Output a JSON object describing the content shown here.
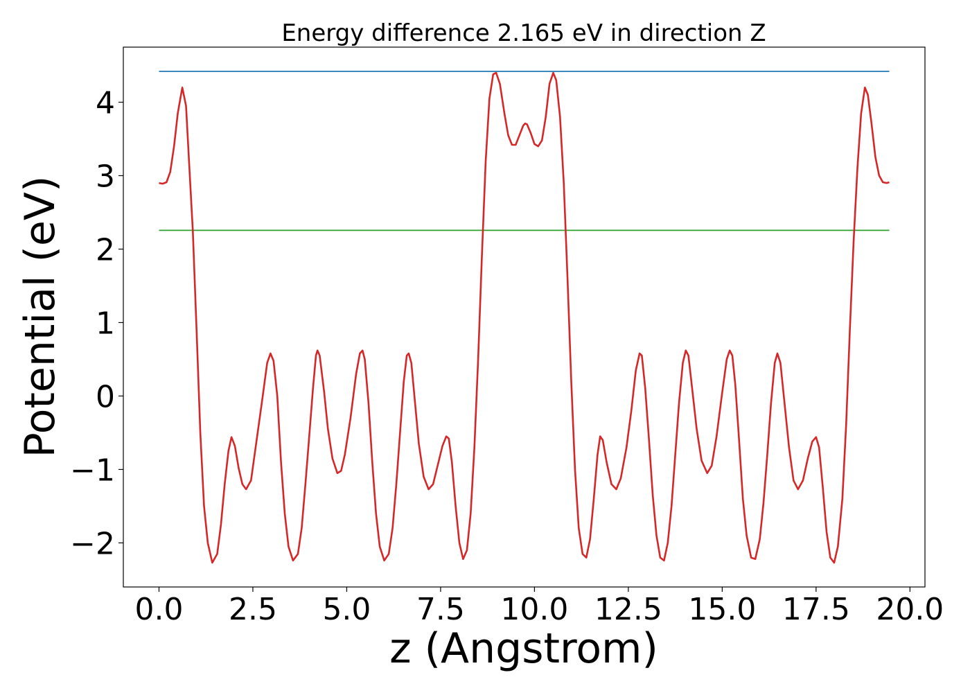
{
  "chart_data": {
    "type": "line",
    "title": "Energy difference 2.165 eV in direction Z",
    "xlabel": "z (Angstrom)",
    "ylabel": "Potential (eV)",
    "xlim": [
      -0.95,
      20.4
    ],
    "ylim": [
      -2.6,
      4.75
    ],
    "xticks": [
      0.0,
      2.5,
      5.0,
      7.5,
      10.0,
      12.5,
      15.0,
      17.5,
      20.0
    ],
    "xtick_labels": [
      "0.0",
      "2.5",
      "5.0",
      "7.5",
      "10.0",
      "12.5",
      "15.0",
      "17.5",
      "20.0"
    ],
    "yticks": [
      -2,
      -1,
      0,
      1,
      2,
      3,
      4
    ],
    "ytick_labels": [
      "−2",
      "−1",
      "0",
      "1",
      "2",
      "3",
      "4"
    ],
    "grid": false,
    "series": [
      {
        "color": "#d62728",
        "points": [
          [
            0.0,
            2.9
          ],
          [
            0.1,
            2.89
          ],
          [
            0.2,
            2.91
          ],
          [
            0.3,
            3.05
          ],
          [
            0.4,
            3.4
          ],
          [
            0.5,
            3.85
          ],
          [
            0.62,
            4.2
          ],
          [
            0.72,
            3.95
          ],
          [
            0.8,
            3.2
          ],
          [
            0.9,
            2.25
          ],
          [
            1.0,
            0.9
          ],
          [
            1.1,
            -0.5
          ],
          [
            1.2,
            -1.5
          ],
          [
            1.3,
            -2.0
          ],
          [
            1.42,
            -2.27
          ],
          [
            1.55,
            -2.15
          ],
          [
            1.65,
            -1.75
          ],
          [
            1.75,
            -1.2
          ],
          [
            1.85,
            -0.75
          ],
          [
            1.93,
            -0.56
          ],
          [
            2.02,
            -0.68
          ],
          [
            2.12,
            -0.98
          ],
          [
            2.22,
            -1.2
          ],
          [
            2.32,
            -1.27
          ],
          [
            2.45,
            -1.15
          ],
          [
            2.6,
            -0.6
          ],
          [
            2.75,
            -0.05
          ],
          [
            2.88,
            0.45
          ],
          [
            2.97,
            0.58
          ],
          [
            3.05,
            0.48
          ],
          [
            3.15,
            0.0
          ],
          [
            3.25,
            -0.9
          ],
          [
            3.35,
            -1.6
          ],
          [
            3.45,
            -2.05
          ],
          [
            3.57,
            -2.24
          ],
          [
            3.7,
            -2.15
          ],
          [
            3.8,
            -1.8
          ],
          [
            3.9,
            -1.2
          ],
          [
            4.0,
            -0.55
          ],
          [
            4.1,
            0.1
          ],
          [
            4.18,
            0.55
          ],
          [
            4.22,
            0.62
          ],
          [
            4.28,
            0.55
          ],
          [
            4.4,
            0.05
          ],
          [
            4.5,
            -0.45
          ],
          [
            4.62,
            -0.85
          ],
          [
            4.75,
            -1.05
          ],
          [
            4.85,
            -1.02
          ],
          [
            4.95,
            -0.8
          ],
          [
            5.1,
            -0.3
          ],
          [
            5.25,
            0.3
          ],
          [
            5.35,
            0.58
          ],
          [
            5.42,
            0.62
          ],
          [
            5.48,
            0.5
          ],
          [
            5.58,
            -0.1
          ],
          [
            5.68,
            -0.9
          ],
          [
            5.78,
            -1.6
          ],
          [
            5.88,
            -2.05
          ],
          [
            6.0,
            -2.24
          ],
          [
            6.12,
            -2.15
          ],
          [
            6.22,
            -1.8
          ],
          [
            6.32,
            -1.2
          ],
          [
            6.42,
            -0.5
          ],
          [
            6.52,
            0.2
          ],
          [
            6.6,
            0.55
          ],
          [
            6.65,
            0.58
          ],
          [
            6.72,
            0.45
          ],
          [
            6.82,
            -0.1
          ],
          [
            6.92,
            -0.65
          ],
          [
            7.05,
            -1.1
          ],
          [
            7.18,
            -1.27
          ],
          [
            7.3,
            -1.2
          ],
          [
            7.42,
            -0.95
          ],
          [
            7.55,
            -0.68
          ],
          [
            7.65,
            -0.55
          ],
          [
            7.72,
            -0.58
          ],
          [
            7.8,
            -0.9
          ],
          [
            7.9,
            -1.5
          ],
          [
            8.0,
            -2.0
          ],
          [
            8.1,
            -2.22
          ],
          [
            8.2,
            -2.1
          ],
          [
            8.3,
            -1.6
          ],
          [
            8.4,
            -0.7
          ],
          [
            8.5,
            0.5
          ],
          [
            8.6,
            1.9
          ],
          [
            8.7,
            3.2
          ],
          [
            8.8,
            4.05
          ],
          [
            8.9,
            4.38
          ],
          [
            8.98,
            4.4
          ],
          [
            9.08,
            4.25
          ],
          [
            9.2,
            3.85
          ],
          [
            9.3,
            3.55
          ],
          [
            9.4,
            3.42
          ],
          [
            9.5,
            3.42
          ],
          [
            9.6,
            3.55
          ],
          [
            9.7,
            3.68
          ],
          [
            9.75,
            3.71
          ],
          [
            9.8,
            3.7
          ],
          [
            9.9,
            3.58
          ],
          [
            10.0,
            3.43
          ],
          [
            10.1,
            3.4
          ],
          [
            10.2,
            3.48
          ],
          [
            10.3,
            3.8
          ],
          [
            10.4,
            4.25
          ],
          [
            10.5,
            4.4
          ],
          [
            10.58,
            4.3
          ],
          [
            10.68,
            3.8
          ],
          [
            10.78,
            2.9
          ],
          [
            10.88,
            1.6
          ],
          [
            10.98,
            0.2
          ],
          [
            11.08,
            -1.0
          ],
          [
            11.18,
            -1.8
          ],
          [
            11.28,
            -2.15
          ],
          [
            11.38,
            -2.2
          ],
          [
            11.48,
            -1.95
          ],
          [
            11.58,
            -1.4
          ],
          [
            11.68,
            -0.8
          ],
          [
            11.75,
            -0.55
          ],
          [
            11.82,
            -0.6
          ],
          [
            11.92,
            -0.9
          ],
          [
            12.05,
            -1.2
          ],
          [
            12.18,
            -1.27
          ],
          [
            12.3,
            -1.12
          ],
          [
            12.45,
            -0.7
          ],
          [
            12.58,
            -0.2
          ],
          [
            12.7,
            0.35
          ],
          [
            12.8,
            0.58
          ],
          [
            12.86,
            0.55
          ],
          [
            12.95,
            0.1
          ],
          [
            13.05,
            -0.6
          ],
          [
            13.15,
            -1.35
          ],
          [
            13.25,
            -1.9
          ],
          [
            13.35,
            -2.2
          ],
          [
            13.45,
            -2.24
          ],
          [
            13.55,
            -2.0
          ],
          [
            13.65,
            -1.5
          ],
          [
            13.75,
            -0.8
          ],
          [
            13.85,
            -0.1
          ],
          [
            13.95,
            0.45
          ],
          [
            14.03,
            0.62
          ],
          [
            14.1,
            0.55
          ],
          [
            14.2,
            0.1
          ],
          [
            14.32,
            -0.45
          ],
          [
            14.45,
            -0.88
          ],
          [
            14.6,
            -1.05
          ],
          [
            14.72,
            -0.95
          ],
          [
            14.85,
            -0.55
          ],
          [
            15.0,
            0.05
          ],
          [
            15.12,
            0.5
          ],
          [
            15.2,
            0.62
          ],
          [
            15.27,
            0.55
          ],
          [
            15.35,
            0.15
          ],
          [
            15.45,
            -0.6
          ],
          [
            15.55,
            -1.4
          ],
          [
            15.65,
            -1.9
          ],
          [
            15.77,
            -2.2
          ],
          [
            15.88,
            -2.22
          ],
          [
            16.0,
            -1.95
          ],
          [
            16.1,
            -1.45
          ],
          [
            16.2,
            -0.8
          ],
          [
            16.3,
            -0.1
          ],
          [
            16.4,
            0.45
          ],
          [
            16.47,
            0.58
          ],
          [
            16.55,
            0.45
          ],
          [
            16.65,
            -0.05
          ],
          [
            16.78,
            -0.7
          ],
          [
            16.9,
            -1.15
          ],
          [
            17.02,
            -1.27
          ],
          [
            17.15,
            -1.15
          ],
          [
            17.28,
            -0.85
          ],
          [
            17.4,
            -0.62
          ],
          [
            17.5,
            -0.56
          ],
          [
            17.58,
            -0.7
          ],
          [
            17.68,
            -1.25
          ],
          [
            17.78,
            -1.85
          ],
          [
            17.88,
            -2.2
          ],
          [
            17.98,
            -2.27
          ],
          [
            18.08,
            -2.05
          ],
          [
            18.2,
            -1.4
          ],
          [
            18.3,
            -0.4
          ],
          [
            18.4,
            0.9
          ],
          [
            18.5,
            2.1
          ],
          [
            18.6,
            3.1
          ],
          [
            18.7,
            3.85
          ],
          [
            18.8,
            4.2
          ],
          [
            18.88,
            4.1
          ],
          [
            18.98,
            3.7
          ],
          [
            19.08,
            3.25
          ],
          [
            19.18,
            3.0
          ],
          [
            19.28,
            2.91
          ],
          [
            19.38,
            2.9
          ],
          [
            19.45,
            2.91
          ]
        ]
      },
      {
        "color": "#1f77b4",
        "points": [
          [
            0.0,
            4.42
          ],
          [
            19.45,
            4.42
          ]
        ]
      },
      {
        "color": "#2ca02c",
        "points": [
          [
            0.0,
            2.255
          ],
          [
            19.45,
            2.255
          ]
        ]
      }
    ]
  }
}
